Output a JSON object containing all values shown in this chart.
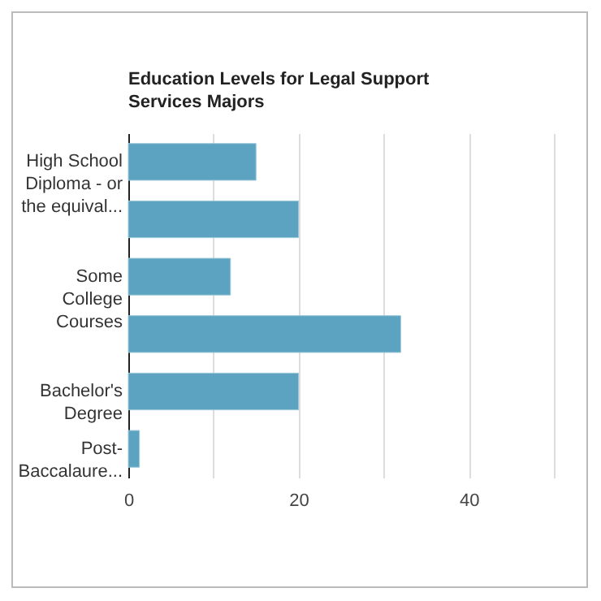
{
  "chart_data": {
    "type": "bar",
    "orientation": "horizontal",
    "title": "Education Levels for Legal Support Services Majors",
    "categories": [
      "High School Diploma - or the equival...",
      null,
      "Some College Courses",
      null,
      "Bachelor's Degree",
      "Post-Baccalaure..."
    ],
    "values": [
      15,
      20,
      12,
      32,
      20,
      1.3
    ],
    "color": "#5ba3c0",
    "xlim": [
      0,
      50
    ],
    "xticks": [
      0,
      {
        "value": 10,
        "label": null
      },
      20,
      {
        "value": 30,
        "label": null
      },
      40,
      {
        "value": 50,
        "label": null
      }
    ],
    "grid": "x"
  }
}
